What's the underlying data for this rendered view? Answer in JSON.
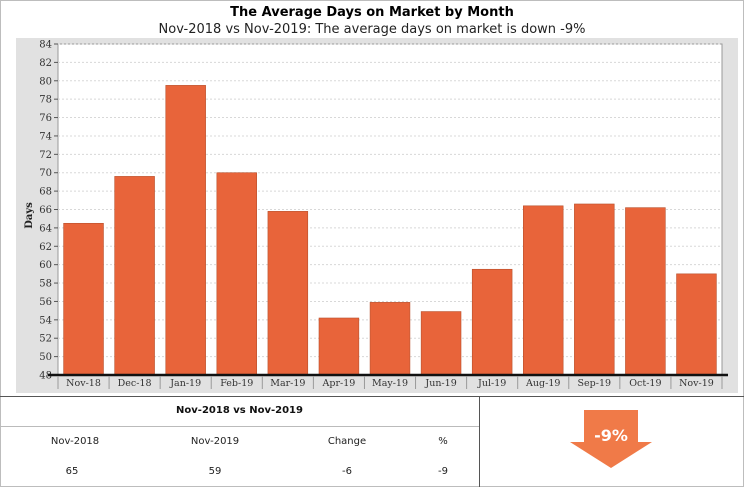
{
  "title": "The Average Days on Market by Month",
  "subtitle": "Nov-2018 vs Nov-2019: The average days on market is down -9%",
  "chart_data": {
    "type": "bar",
    "categories": [
      "Nov-18",
      "Dec-18",
      "Jan-19",
      "Feb-19",
      "Mar-19",
      "Apr-19",
      "May-19",
      "Jun-19",
      "Jul-19",
      "Aug-19",
      "Sep-19",
      "Oct-19",
      "Nov-19"
    ],
    "values": [
      64.5,
      69.6,
      79.5,
      70.0,
      65.8,
      54.2,
      55.9,
      54.9,
      59.5,
      66.4,
      66.6,
      66.2,
      59.0
    ],
    "ylabel": "Days",
    "xlabel": "",
    "ylim": [
      48,
      84
    ],
    "yticks": [
      48,
      50,
      52,
      54,
      56,
      58,
      60,
      62,
      64,
      66,
      68,
      70,
      72,
      74,
      76,
      78,
      80,
      82,
      84
    ],
    "bar_color": "#e8643a",
    "grid": true
  },
  "summary": {
    "title": "Nov-2018 vs Nov-2019",
    "headers": [
      "Nov-2018",
      "Nov-2019",
      "Change",
      "%"
    ],
    "values": [
      "65",
      "59",
      "-6",
      "-9"
    ]
  },
  "badge": {
    "text": "-9%",
    "color": "#f07a48",
    "icon": "down-arrow-icon"
  }
}
